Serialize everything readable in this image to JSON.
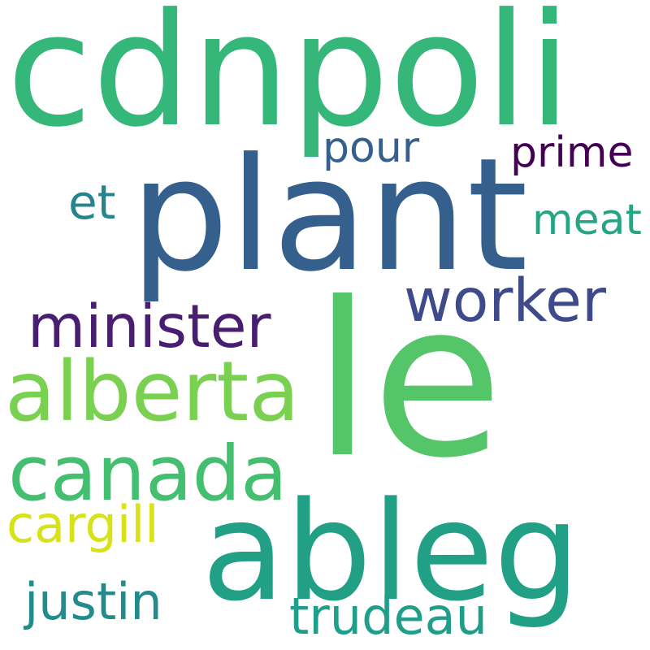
{
  "words": [
    {
      "text": "cdnpoli",
      "color": "#35b779"
    },
    {
      "text": "plant",
      "color": "#35608d"
    },
    {
      "text": "le",
      "color": "#54c568"
    },
    {
      "text": "ableg",
      "color": "#21a086"
    },
    {
      "text": "alberta",
      "color": "#7ad151"
    },
    {
      "text": "canada",
      "color": "#44bf70"
    },
    {
      "text": "minister",
      "color": "#481f70"
    },
    {
      "text": "worker",
      "color": "#3e4a89"
    },
    {
      "text": "cargill",
      "color": "#d8e219"
    },
    {
      "text": "justin",
      "color": "#228c8d"
    },
    {
      "text": "trudeau",
      "color": "#1f9e89"
    },
    {
      "text": "pour",
      "color": "#355f8d"
    },
    {
      "text": "prime",
      "color": "#440154"
    },
    {
      "text": "meat",
      "color": "#26a584"
    },
    {
      "text": "et",
      "color": "#25858e"
    }
  ]
}
